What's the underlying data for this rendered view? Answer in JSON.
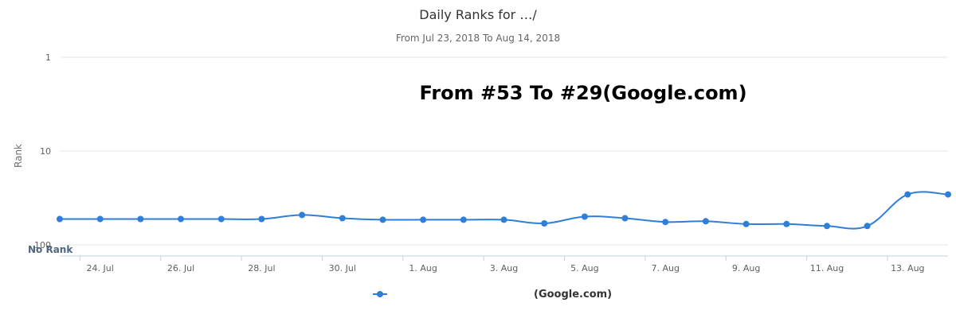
{
  "chart_data": {
    "type": "line",
    "title": "Daily Ranks for …/",
    "subtitle": "From Jul 23, 2018 To Aug 14, 2018",
    "annotation": "From #53 To #29(Google.com)",
    "ylabel": "Rank",
    "xlabel": "",
    "y_scale": "log",
    "y_reversed": true,
    "ylim": [
      1,
      100
    ],
    "y_ticks": [
      {
        "value": 1,
        "label": "1"
      },
      {
        "value": 10,
        "label": "10"
      },
      {
        "value": 100,
        "label": "100"
      }
    ],
    "no_rank_label": "No Rank",
    "x_tick_labels": [
      "24. Jul",
      "26. Jul",
      "28. Jul",
      "30. Jul",
      "1. Aug",
      "3. Aug",
      "5. Aug",
      "7. Aug",
      "9. Aug",
      "11. Aug",
      "13. Aug"
    ],
    "x": [
      "2018-07-23",
      "2018-07-24",
      "2018-07-25",
      "2018-07-26",
      "2018-07-27",
      "2018-07-28",
      "2018-07-29",
      "2018-07-30",
      "2018-07-31",
      "2018-08-01",
      "2018-08-02",
      "2018-08-03",
      "2018-08-04",
      "2018-08-05",
      "2018-08-06",
      "2018-08-07",
      "2018-08-08",
      "2018-08-09",
      "2018-08-10",
      "2018-08-11",
      "2018-08-12",
      "2018-08-13",
      "2018-08-14"
    ],
    "series": [
      {
        "name": "(Google.com)",
        "color": "#2f7ed8",
        "values": [
          53,
          53,
          53,
          53,
          53,
          53,
          48,
          52,
          54,
          54,
          54,
          54,
          59,
          50,
          52,
          57,
          56,
          60,
          60,
          63,
          63,
          29,
          29
        ]
      }
    ],
    "grid": true,
    "legend_position": "bottom-center"
  }
}
